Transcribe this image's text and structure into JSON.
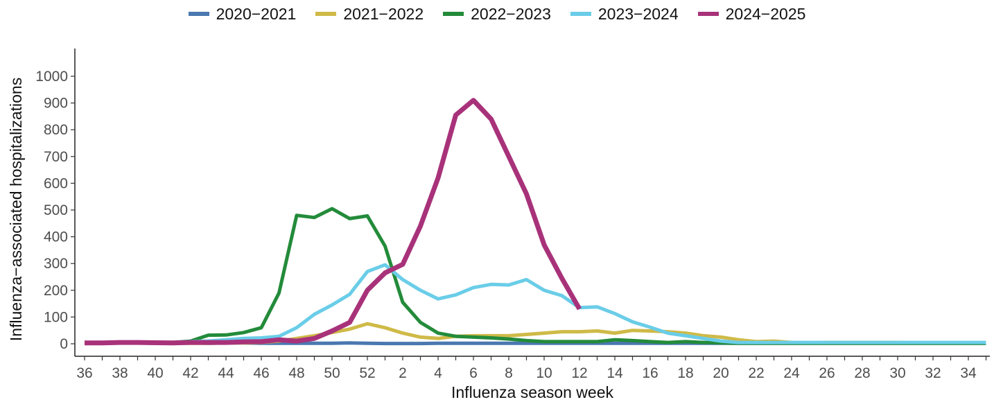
{
  "chart_data": {
    "type": "line",
    "title": "",
    "xlabel": "Influenza season week",
    "ylabel": "Influenza−associated hospitalizations",
    "ylim": [
      0,
      1000
    ],
    "yticks": [
      0,
      100,
      200,
      300,
      400,
      500,
      600,
      700,
      800,
      900,
      1000
    ],
    "xticks": [
      "36",
      "38",
      "40",
      "42",
      "44",
      "46",
      "48",
      "50",
      "52",
      "2",
      "4",
      "6",
      "8",
      "10",
      "12",
      "14",
      "16",
      "18",
      "20",
      "22",
      "24",
      "26",
      "28",
      "30",
      "32",
      "34"
    ],
    "x": [
      "36",
      "37",
      "38",
      "39",
      "40",
      "41",
      "42",
      "43",
      "44",
      "45",
      "46",
      "47",
      "48",
      "49",
      "50",
      "51",
      "52",
      "1",
      "2",
      "3",
      "4",
      "5",
      "6",
      "7",
      "8",
      "9",
      "10",
      "11",
      "12",
      "13",
      "14",
      "15",
      "16",
      "17",
      "18",
      "19",
      "20",
      "21",
      "22",
      "23",
      "24",
      "25",
      "26",
      "27",
      "28",
      "29",
      "30",
      "31",
      "32",
      "33",
      "34",
      "35"
    ],
    "grid": false,
    "legend_position": "top",
    "series": [
      {
        "name": "2020−2021",
        "color": "#4a78b0",
        "width": 5,
        "values": [
          3,
          3,
          4,
          4,
          3,
          3,
          3,
          2,
          3,
          3,
          2,
          2,
          2,
          2,
          2,
          3,
          2,
          1,
          1,
          1,
          2,
          2,
          2,
          2,
          2,
          2,
          2,
          2,
          2,
          2,
          2,
          2,
          2,
          2,
          2,
          2,
          2,
          2,
          2,
          2,
          2,
          2,
          2,
          2,
          2,
          2,
          2,
          2,
          2,
          2,
          2,
          2
        ]
      },
      {
        "name": "2021−2022",
        "color": "#cfba48",
        "width": 5,
        "values": [
          2,
          2,
          3,
          3,
          3,
          3,
          2,
          2,
          3,
          3,
          5,
          10,
          20,
          30,
          42,
          55,
          75,
          60,
          40,
          25,
          20,
          28,
          30,
          30,
          30,
          35,
          40,
          45,
          45,
          48,
          40,
          50,
          48,
          45,
          40,
          30,
          25,
          15,
          8,
          10,
          5,
          3,
          5,
          5,
          5,
          5,
          5,
          3,
          3,
          3,
          3,
          3
        ]
      },
      {
        "name": "2022−2023",
        "color": "#238b3a",
        "width": 5,
        "values": [
          3,
          3,
          5,
          5,
          5,
          5,
          10,
          32,
          33,
          42,
          60,
          190,
          480,
          472,
          505,
          468,
          478,
          365,
          155,
          80,
          40,
          28,
          25,
          22,
          18,
          12,
          8,
          8,
          8,
          8,
          15,
          12,
          8,
          5,
          8,
          5,
          3,
          2,
          2,
          2,
          2,
          2,
          2,
          2,
          2,
          2,
          2,
          2,
          2,
          2,
          2,
          2
        ]
      },
      {
        "name": "2023−2024",
        "color": "#6acde8",
        "width": 5,
        "values": [
          3,
          3,
          4,
          4,
          5,
          5,
          8,
          10,
          15,
          20,
          22,
          28,
          60,
          110,
          145,
          185,
          270,
          295,
          240,
          200,
          168,
          183,
          210,
          222,
          220,
          240,
          200,
          180,
          135,
          138,
          113,
          82,
          62,
          40,
          30,
          20,
          10,
          5,
          5,
          5,
          5,
          5,
          5,
          5,
          5,
          5,
          5,
          5,
          5,
          5,
          5,
          5
        ]
      },
      {
        "name": "2024−2025",
        "color": "#a8327a",
        "width": 7,
        "values": [
          3,
          3,
          5,
          5,
          4,
          3,
          5,
          5,
          5,
          7,
          8,
          15,
          10,
          20,
          48,
          80,
          200,
          265,
          297,
          440,
          620,
          855,
          910,
          840,
          700,
          560,
          370,
          245,
          130,
          null,
          null,
          null,
          null,
          null,
          null,
          null,
          null,
          null,
          null,
          null,
          null,
          null,
          null,
          null,
          null,
          null,
          null,
          null,
          null,
          null,
          null,
          null
        ]
      }
    ]
  }
}
